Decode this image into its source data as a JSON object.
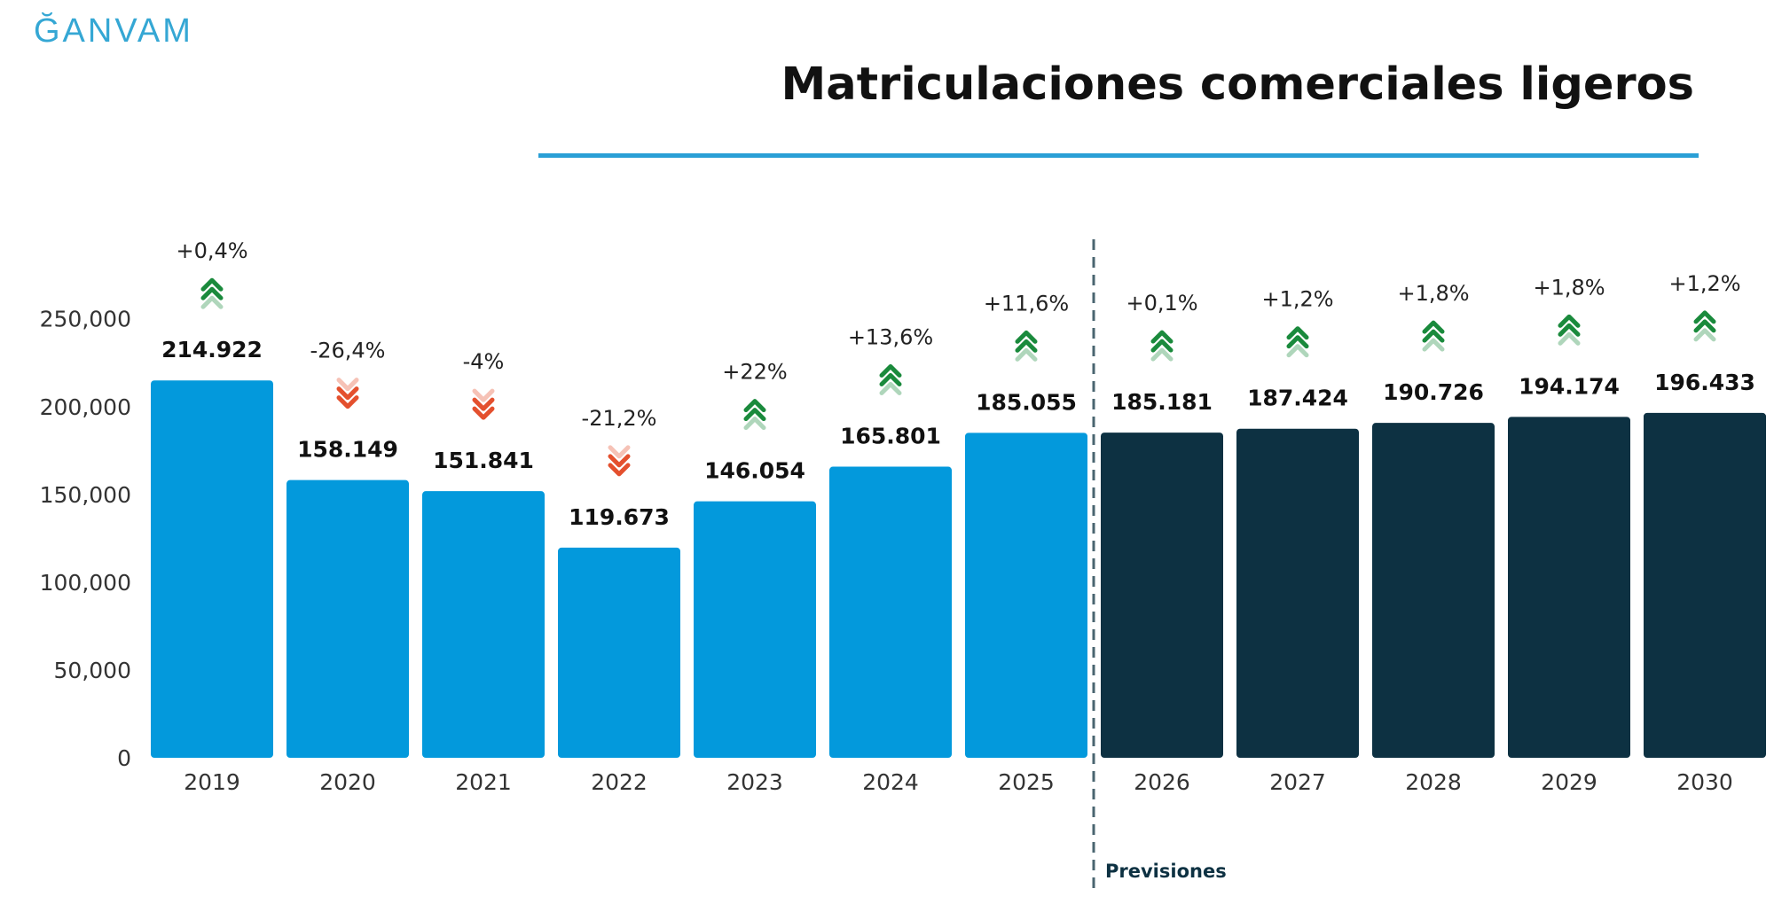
{
  "header": {
    "logo": "ĞANVAM",
    "title": "Matriculaciones comerciales ligeros"
  },
  "colors": {
    "historic": "#0399dc",
    "forecast": "#0d3142",
    "up": "#1a8a3c",
    "down": "#e4502e",
    "rule": "#2a9fd6"
  },
  "chart_data": {
    "type": "bar",
    "title": "Matriculaciones comerciales ligeros",
    "categories": [
      "2019",
      "2020",
      "2021",
      "2022",
      "2023",
      "2024",
      "2025",
      "2026",
      "2027",
      "2028",
      "2029",
      "2030"
    ],
    "values": [
      214922,
      158149,
      151841,
      119673,
      146054,
      165801,
      185055,
      185181,
      187424,
      190726,
      194174,
      196433
    ],
    "value_labels": [
      "214.922",
      "158.149",
      "151.841",
      "119.673",
      "146.054",
      "165.801",
      "185.055",
      "185.181",
      "187.424",
      "190.726",
      "194.174",
      "196.433"
    ],
    "changes": [
      "+0,4%",
      "-26,4%",
      "-4%",
      "-21,2%",
      "+22%",
      "+13,6%",
      "+11,6%",
      "+0,1%",
      "+1,2%",
      "+1,8%",
      "+1,8%",
      "+1,2%"
    ],
    "trend": [
      "up",
      "down",
      "down",
      "down",
      "up",
      "up",
      "up",
      "up",
      "up",
      "up",
      "up",
      "up"
    ],
    "forecast_start_index": 7,
    "forecast_label": "Previsiones",
    "y_ticks": [
      "0",
      "50,000",
      "100,000",
      "150,000",
      "200,000",
      "250,000"
    ],
    "y_tick_values": [
      0,
      50000,
      100000,
      150000,
      200000,
      250000
    ],
    "ylim": [
      0,
      265000
    ],
    "xlabel": "",
    "ylabel": "",
    "grid": false,
    "legend": "none"
  }
}
